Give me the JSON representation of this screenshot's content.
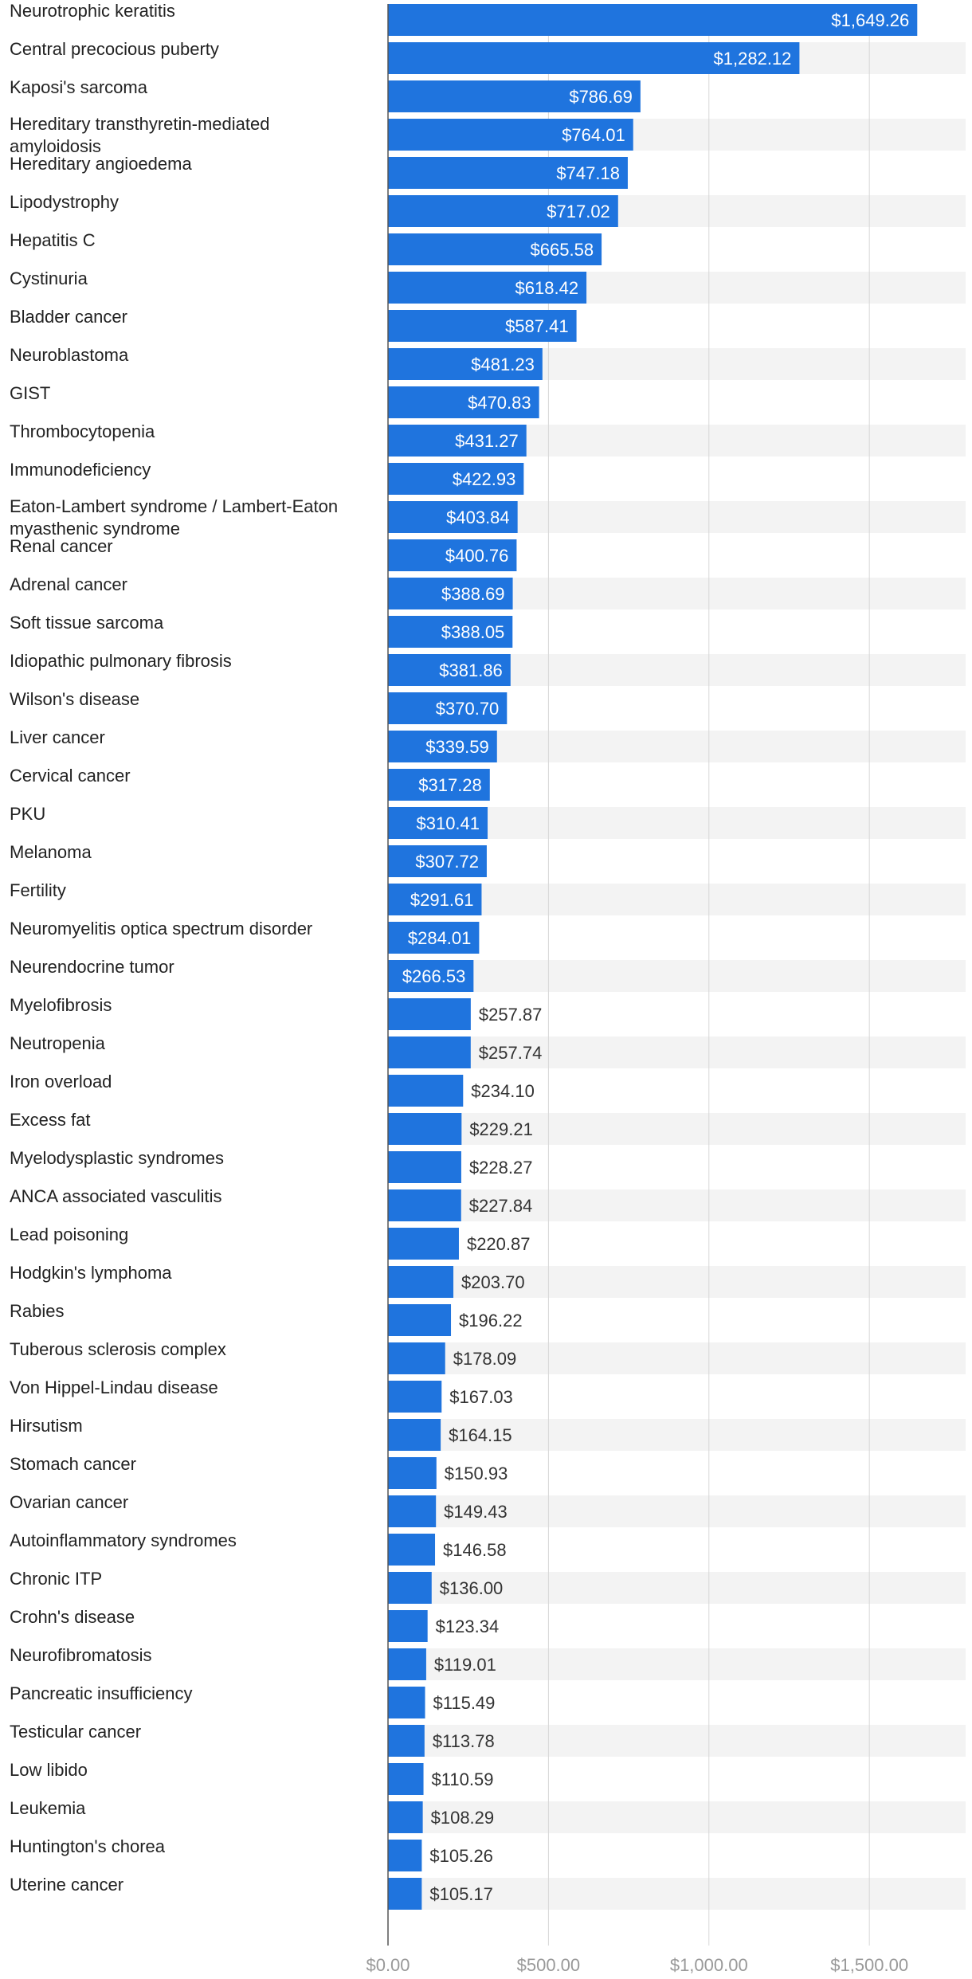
{
  "colors": {
    "bar": "#1f74de",
    "band": "#f3f3f3",
    "grid": "#d6d6d6",
    "axis": "#555555",
    "label": "#222222",
    "value_inside": "#ffffff",
    "value_outside": "#333333",
    "tick": "#999999"
  },
  "chart_data": {
    "type": "bar",
    "orientation": "horizontal",
    "title": "",
    "xlabel": "",
    "ylabel": "",
    "xlim": [
      0,
      1800
    ],
    "grid": true,
    "x_ticks": [
      0,
      500,
      1000,
      1500
    ],
    "x_tick_labels": [
      "$0.00",
      "$500.00",
      "$1,000.00",
      "$1,500.00"
    ],
    "categories": [
      "Neurotrophic keratitis",
      "Central precocious puberty",
      "Kaposi's sarcoma",
      "Hereditary transthyretin-mediated amyloidosis",
      "Hereditary angioedema",
      "Lipodystrophy",
      "Hepatitis C",
      "Cystinuria",
      "Bladder cancer",
      "Neuroblastoma",
      "GIST",
      "Thrombocytopenia",
      "Immunodeficiency",
      "Eaton-Lambert syndrome / Lambert-Eaton myasthenic syndrome",
      "Renal cancer",
      "Adrenal cancer",
      "Soft tissue sarcoma",
      "Idiopathic pulmonary fibrosis",
      "Wilson's disease",
      "Liver cancer",
      "Cervical cancer",
      "PKU",
      "Melanoma",
      "Fertility",
      "Neuromyelitis optica spectrum disorder",
      "Neurendocrine tumor",
      "Myelofibrosis",
      "Neutropenia",
      "Iron overload",
      "Excess fat",
      "Myelodysplastic syndromes",
      "ANCA associated vasculitis",
      "Lead poisoning",
      "Hodgkin's lymphoma",
      "Rabies",
      "Tuberous sclerosis complex",
      "Von Hippel-Lindau disease",
      "Hirsutism",
      "Stomach cancer",
      "Ovarian cancer",
      "Autoinflammatory syndromes",
      "Chronic ITP",
      "Crohn's disease",
      "Neurofibromatosis",
      "Pancreatic insufficiency",
      "Testicular cancer",
      "Low libido",
      "Leukemia",
      "Huntington's chorea",
      "Uterine cancer"
    ],
    "values": [
      1649.26,
      1282.12,
      786.69,
      764.01,
      747.18,
      717.02,
      665.58,
      618.42,
      587.41,
      481.23,
      470.83,
      431.27,
      422.93,
      403.84,
      400.76,
      388.69,
      388.05,
      381.86,
      370.7,
      339.59,
      317.28,
      310.41,
      307.72,
      291.61,
      284.01,
      266.53,
      257.87,
      257.74,
      234.1,
      229.21,
      228.27,
      227.84,
      220.87,
      203.7,
      196.22,
      178.09,
      167.03,
      164.15,
      150.93,
      149.43,
      146.58,
      136.0,
      123.34,
      119.01,
      115.49,
      113.78,
      110.59,
      108.29,
      105.26,
      105.17
    ],
    "value_labels": [
      "$1,649.26",
      "$1,282.12",
      "$786.69",
      "$764.01",
      "$747.18",
      "$717.02",
      "$665.58",
      "$618.42",
      "$587.41",
      "$481.23",
      "$470.83",
      "$431.27",
      "$422.93",
      "$403.84",
      "$400.76",
      "$388.69",
      "$388.05",
      "$381.86",
      "$370.70",
      "$339.59",
      "$317.28",
      "$310.41",
      "$307.72",
      "$291.61",
      "$284.01",
      "$266.53",
      "$257.87",
      "$257.74",
      "$234.10",
      "$229.21",
      "$228.27",
      "$227.84",
      "$220.87",
      "$203.70",
      "$196.22",
      "$178.09",
      "$167.03",
      "$164.15",
      "$150.93",
      "$149.43",
      "$146.58",
      "$136.00",
      "$123.34",
      "$119.01",
      "$115.49",
      "$113.78",
      "$110.59",
      "$108.29",
      "$105.26",
      "$105.17"
    ],
    "category_label_lines": {
      "3": [
        "Hereditary transthyretin-mediated",
        "amyloidosis"
      ],
      "13": [
        "Eaton-Lambert syndrome / Lambert-Eaton",
        "myasthenic syndrome"
      ]
    }
  }
}
